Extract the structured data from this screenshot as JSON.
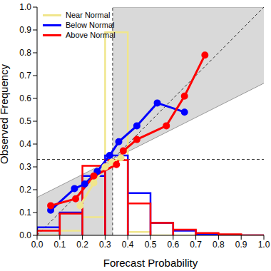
{
  "chart_data": {
    "type": "line",
    "x_label": "Forecast Probability",
    "y_label": "Observed Frequency",
    "xlim": [
      0,
      1
    ],
    "ylim": [
      0,
      1
    ],
    "xticks": [
      {
        "value": 0,
        "label": "0.0"
      },
      0.1,
      0.2,
      0.3,
      0.4,
      0.5,
      0.6,
      0.7,
      0.8,
      0.9,
      {
        "value": 1,
        "label": "1.0"
      }
    ],
    "yticks": [
      {
        "value": 0,
        "label": "0.0"
      },
      0.1,
      0.2,
      0.3,
      0.4,
      0.5,
      0.6,
      0.7,
      0.8,
      0.9,
      {
        "value": 1,
        "label": "1.0"
      }
    ],
    "grid": false,
    "legend": "upper left",
    "marker": "circle",
    "climatology": 0.333,
    "bins": [
      0,
      0.1,
      0.2,
      0.3,
      0.4,
      0.5,
      0.6,
      0.7,
      0.8,
      0.9,
      1
    ],
    "series": [
      {
        "name": "Near Normal",
        "color": "#f0e68c",
        "x": [
          0.19,
          0.25,
          0.3,
          0.33,
          0.37
        ],
        "values": [
          0.13,
          0.23,
          0.3,
          0.32,
          0.34
        ],
        "forecast_frequency": [
          0,
          0.02,
          0.08,
          0.89,
          0.015,
          0,
          0,
          0,
          0,
          0
        ]
      },
      {
        "name": "Below Normal",
        "color": "#0000ff",
        "x": [
          0.06,
          0.165,
          0.21,
          0.265,
          0.32,
          0.36,
          0.44,
          0.53,
          0.65
        ],
        "values": [
          0.11,
          0.205,
          0.225,
          0.28,
          0.35,
          0.41,
          0.48,
          0.58,
          0.54
        ],
        "forecast_frequency": [
          0.035,
          0.1,
          0.26,
          0.35,
          0.185,
          0.055,
          0.02,
          0.005,
          0,
          0
        ]
      },
      {
        "name": "Above Normal",
        "color": "#ff0000",
        "x": [
          0.06,
          0.17,
          0.25,
          0.35,
          0.38,
          0.44,
          0.57,
          0.65,
          0.74
        ],
        "values": [
          0.13,
          0.16,
          0.26,
          0.31,
          0.37,
          0.42,
          0.48,
          0.61,
          0.79
        ],
        "forecast_frequency": [
          0.02,
          0.095,
          0.305,
          0.33,
          0.14,
          0.055,
          0.025,
          0.01,
          0.005,
          0
        ]
      }
    ]
  }
}
